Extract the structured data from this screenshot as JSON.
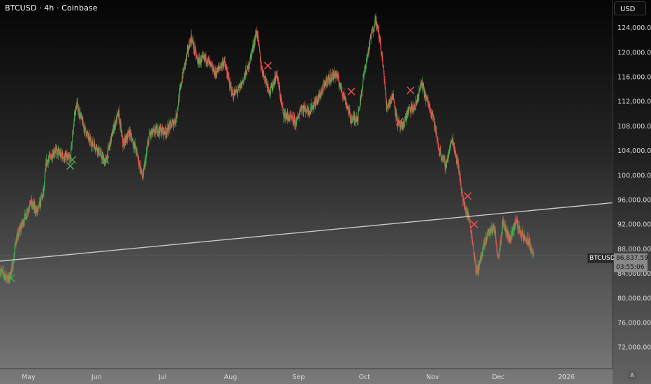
{
  "header": {
    "title": "BTCUSD · 4h · Coinbase",
    "currency_button": "USD"
  },
  "price_tag": {
    "symbol": "BTCUSD",
    "price": "86,837.59",
    "countdown": "03:55:06"
  },
  "auto_scale_label": "A",
  "colors": {
    "up": "#4caf50",
    "down": "#ef5350",
    "up_marker": "#4caf50",
    "down_marker": "#ef5350",
    "trendline": "#c8c8c8",
    "axis_text": "#d8d8d8"
  },
  "chart_data": {
    "type": "candlestick",
    "symbol": "BTCUSD",
    "interval": "4h",
    "exchange": "Coinbase",
    "y_ticks": [
      "124,000.00",
      "120,000.00",
      "116,000.00",
      "112,000.00",
      "108,000.00",
      "104,000.00",
      "100,000.00",
      "96,000.00",
      "92,000.00",
      "88,000.00",
      "84,000.00",
      "80,000.00",
      "76,000.00",
      "72,000.00"
    ],
    "y_tick_values": [
      124000,
      120000,
      116000,
      112000,
      108000,
      104000,
      100000,
      96000,
      92000,
      88000,
      84000,
      80000,
      76000,
      72000
    ],
    "ylim": [
      68500,
      128500
    ],
    "x_ticks": [
      "May",
      "Jun",
      "Jul",
      "Aug",
      "Sep",
      "Oct",
      "Nov",
      "Dec",
      "2026"
    ],
    "x_tick_dates": [
      "2025-05-01",
      "2025-06-01",
      "2025-07-01",
      "2025-08-01",
      "2025-09-01",
      "2025-10-01",
      "2025-11-01",
      "2025-12-01",
      "2026-01-01"
    ],
    "xlim": [
      "2025-04-18",
      "2026-01-22"
    ],
    "last_price": 86837.59,
    "price_path": [
      [
        "2025-04-18",
        84500
      ],
      [
        "2025-04-22",
        83000
      ],
      [
        "2025-04-24",
        85500
      ],
      [
        "2025-04-25",
        89000
      ],
      [
        "2025-04-28",
        92000
      ],
      [
        "2025-05-02",
        95500
      ],
      [
        "2025-05-05",
        94000
      ],
      [
        "2025-05-08",
        97500
      ],
      [
        "2025-05-09",
        102000
      ],
      [
        "2025-05-13",
        104000
      ],
      [
        "2025-05-17",
        103000
      ],
      [
        "2025-05-20",
        102500
      ],
      [
        "2025-05-22",
        110000
      ],
      [
        "2025-05-23",
        111500
      ],
      [
        "2025-05-26",
        108000
      ],
      [
        "2025-05-29",
        105500
      ],
      [
        "2025-06-01",
        104500
      ],
      [
        "2025-06-05",
        102000
      ],
      [
        "2025-06-09",
        108000
      ],
      [
        "2025-06-11",
        110000
      ],
      [
        "2025-06-13",
        105000
      ],
      [
        "2025-06-16",
        107000
      ],
      [
        "2025-06-19",
        104000
      ],
      [
        "2025-06-22",
        99500
      ],
      [
        "2025-06-25",
        106500
      ],
      [
        "2025-06-29",
        107500
      ],
      [
        "2025-07-02",
        107000
      ],
      [
        "2025-07-07",
        109000
      ],
      [
        "2025-07-10",
        116000
      ],
      [
        "2025-07-14",
        122500
      ],
      [
        "2025-07-17",
        118500
      ],
      [
        "2025-07-21",
        119000
      ],
      [
        "2025-07-25",
        116500
      ],
      [
        "2025-07-29",
        118500
      ],
      [
        "2025-08-02",
        113000
      ],
      [
        "2025-08-05",
        114000
      ],
      [
        "2025-08-09",
        117500
      ],
      [
        "2025-08-13",
        123500
      ],
      [
        "2025-08-15",
        117500
      ],
      [
        "2025-08-19",
        113500
      ],
      [
        "2025-08-22",
        116500
      ],
      [
        "2025-08-25",
        110000
      ],
      [
        "2025-08-31",
        108500
      ],
      [
        "2025-09-02",
        111000
      ],
      [
        "2025-09-06",
        110500
      ],
      [
        "2025-09-10",
        112500
      ],
      [
        "2025-09-14",
        115500
      ],
      [
        "2025-09-18",
        116500
      ],
      [
        "2025-09-22",
        112500
      ],
      [
        "2025-09-25",
        109000
      ],
      [
        "2025-09-28",
        109500
      ],
      [
        "2025-10-01",
        117000
      ],
      [
        "2025-10-04",
        122500
      ],
      [
        "2025-10-06",
        125500
      ],
      [
        "2025-10-08",
        122000
      ],
      [
        "2025-10-10",
        116000
      ],
      [
        "2025-10-11",
        111000
      ],
      [
        "2025-10-14",
        113000
      ],
      [
        "2025-10-16",
        108500
      ],
      [
        "2025-10-18",
        107500
      ],
      [
        "2025-10-21",
        110500
      ],
      [
        "2025-10-24",
        111000
      ],
      [
        "2025-10-27",
        115000
      ],
      [
        "2025-10-29",
        112500
      ],
      [
        "2025-11-01",
        110000
      ],
      [
        "2025-11-04",
        104000
      ],
      [
        "2025-11-07",
        101500
      ],
      [
        "2025-11-10",
        106000
      ],
      [
        "2025-11-13",
        101000
      ],
      [
        "2025-11-15",
        95500
      ],
      [
        "2025-11-18",
        92500
      ],
      [
        "2025-11-21",
        84000
      ],
      [
        "2025-11-23",
        86500
      ],
      [
        "2025-11-26",
        90500
      ],
      [
        "2025-11-29",
        91500
      ],
      [
        "2025-12-01",
        86500
      ],
      [
        "2025-12-03",
        92500
      ],
      [
        "2025-12-06",
        89500
      ],
      [
        "2025-12-09",
        92500
      ],
      [
        "2025-12-12",
        90000
      ],
      [
        "2025-12-15",
        89000
      ],
      [
        "2025-12-17",
        86837.59
      ]
    ],
    "trendline": {
      "from": [
        "2025-04-18",
        86000
      ],
      "to": [
        "2026-01-22",
        95500
      ]
    },
    "last_price_line": 86837.59,
    "markers": [
      {
        "date": "2025-04-23",
        "price": 83200,
        "type": "buy"
      },
      {
        "date": "2025-05-20",
        "price": 101500,
        "type": "buy"
      },
      {
        "date": "2025-05-21",
        "price": 102500,
        "type": "buy"
      },
      {
        "date": "2025-06-05",
        "price": 102400,
        "type": "buy"
      },
      {
        "date": "2025-08-18",
        "price": 117800,
        "type": "sell"
      },
      {
        "date": "2025-09-25",
        "price": 113600,
        "type": "sell"
      },
      {
        "date": "2025-10-17",
        "price": 108700,
        "type": "sell"
      },
      {
        "date": "2025-10-22",
        "price": 113800,
        "type": "sell"
      },
      {
        "date": "2025-11-17",
        "price": 96600,
        "type": "sell"
      },
      {
        "date": "2025-11-20",
        "price": 92000,
        "type": "sell"
      }
    ]
  }
}
